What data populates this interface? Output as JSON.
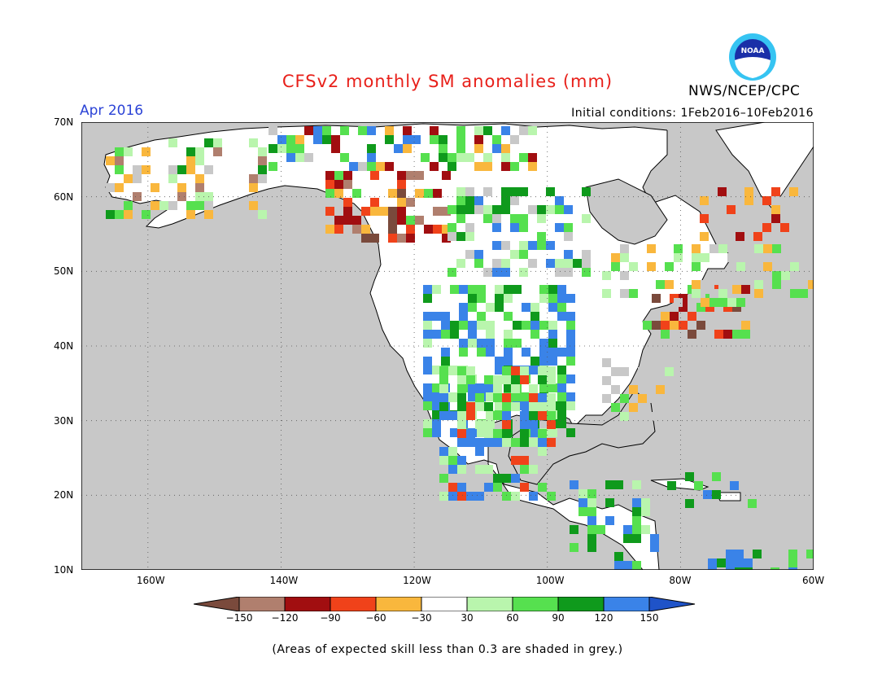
{
  "title": "CFSv2 monthly SM anomalies (mm)",
  "period": "Apr 2016",
  "initial_conditions": "Initial conditions: 1Feb2016–10Feb2016",
  "agency": "NWS/NCEP/CPC",
  "logo_text": "NOAA",
  "footer": "(Areas of expected skill less than 0.3 are shaded in grey.)",
  "lat_labels": [
    "70N",
    "60N",
    "50N",
    "40N",
    "30N",
    "20N",
    "10N"
  ],
  "lon_labels": [
    "160W",
    "140W",
    "120W",
    "100W",
    "80W",
    "60W"
  ],
  "colorbar": {
    "ticks": [
      "−150",
      "−120",
      "−90",
      "−60",
      "−30",
      "30",
      "60",
      "90",
      "120",
      "150"
    ],
    "colors": [
      "#7a4a3c",
      "#b07f6e",
      "#a10e10",
      "#f0421a",
      "#f9b73d",
      "#ffffff",
      "#b9f5ad",
      "#56e04f",
      "#0f9a1c",
      "#3a83e8",
      "#1f53c8"
    ]
  },
  "map_colors": {
    "ocean_grey": "#c8c8c8",
    "land": "#ffffff",
    "border": "#000000"
  }
}
